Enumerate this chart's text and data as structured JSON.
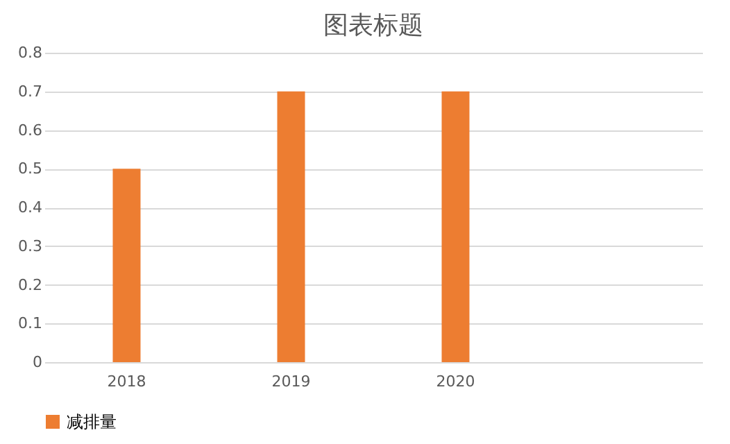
{
  "chart_data": {
    "type": "bar",
    "title": "图表标题",
    "categories": [
      "2018",
      "2019",
      "2020",
      null
    ],
    "series": [
      {
        "name": "减排量",
        "color": "#ed7d31",
        "values": [
          0.5,
          0.7,
          0.7,
          null
        ]
      }
    ],
    "ylim": [
      0,
      0.8
    ],
    "yticks": [
      0,
      0.1,
      0.2,
      0.3,
      0.4,
      0.5,
      0.6,
      0.7,
      0.8
    ],
    "grid": "y",
    "legend": "bottom"
  }
}
